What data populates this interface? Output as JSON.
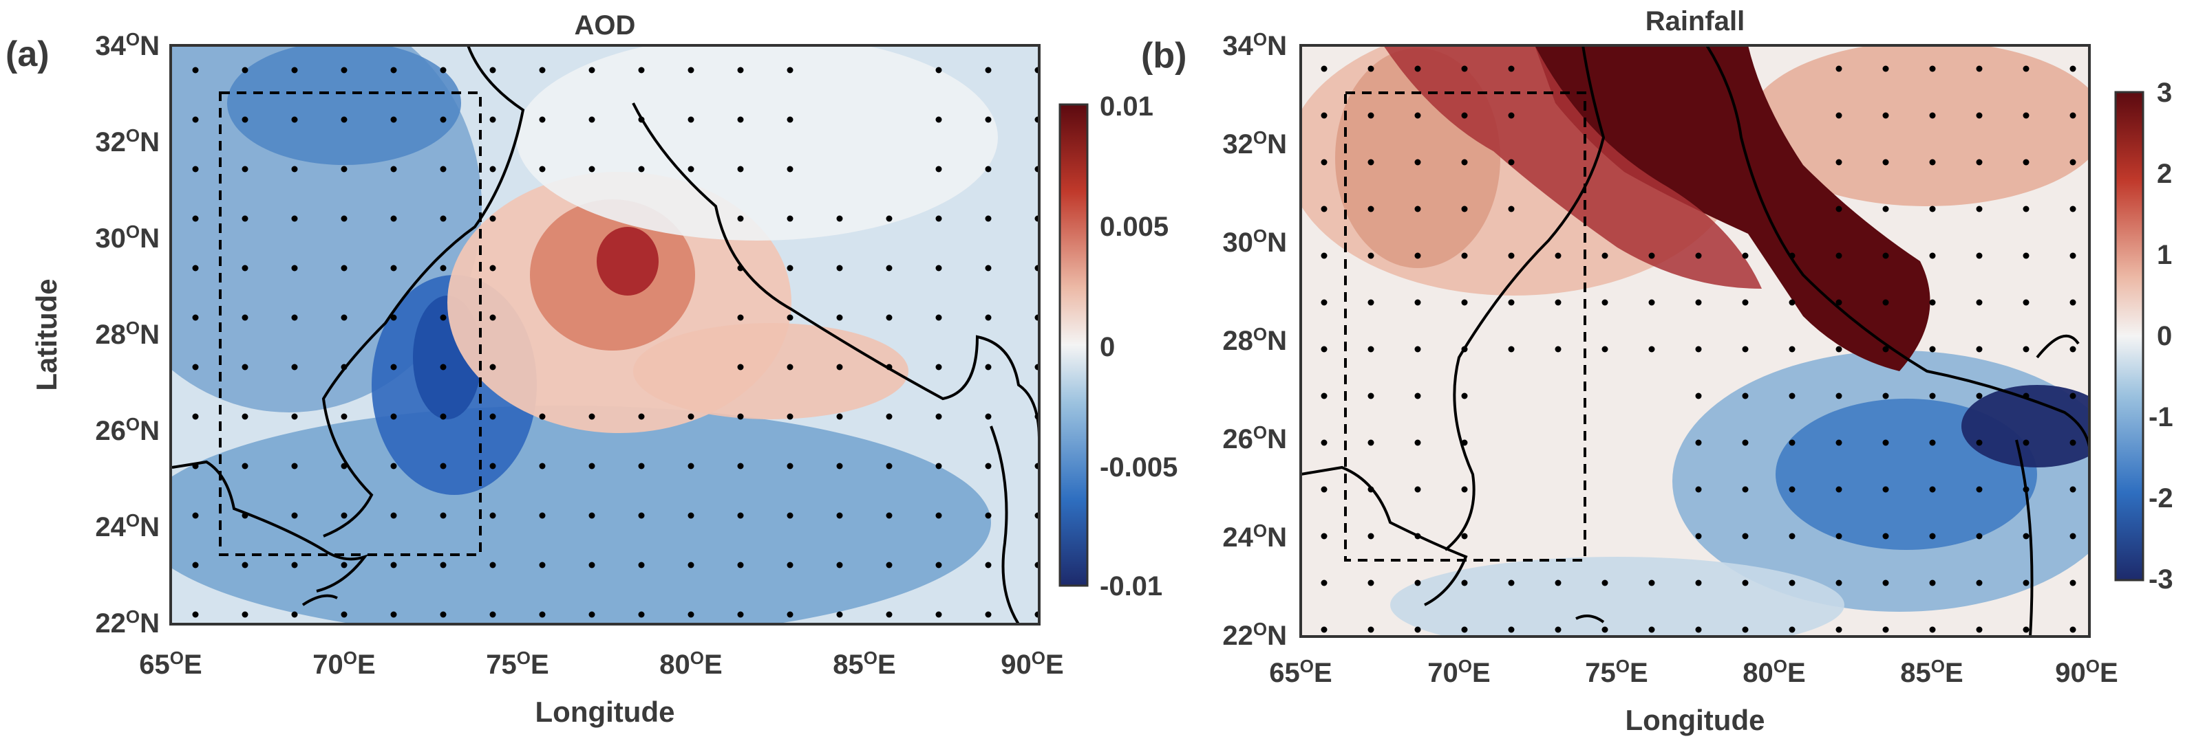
{
  "figure": {
    "panels": [
      {
        "id": "a",
        "panel_label": "(a)",
        "title": "AOD",
        "xlabel": "Longitude",
        "ylabel": "Latitude",
        "lon_ticks": [
          {
            "base": "65",
            "deg": "O",
            "hemi": "E"
          },
          {
            "base": "70",
            "deg": "O",
            "hemi": "E"
          },
          {
            "base": "75",
            "deg": "O",
            "hemi": "E"
          },
          {
            "base": "80",
            "deg": "O",
            "hemi": "E"
          },
          {
            "base": "85",
            "deg": "O",
            "hemi": "E"
          },
          {
            "base": "90",
            "deg": "O",
            "hemi": "E"
          }
        ],
        "lat_ticks": [
          {
            "base": "34",
            "deg": "O",
            "hemi": "N"
          },
          {
            "base": "32",
            "deg": "O",
            "hemi": "N"
          },
          {
            "base": "30",
            "deg": "O",
            "hemi": "N"
          },
          {
            "base": "28",
            "deg": "O",
            "hemi": "N"
          },
          {
            "base": "26",
            "deg": "O",
            "hemi": "N"
          },
          {
            "base": "24",
            "deg": "O",
            "hemi": "N"
          },
          {
            "base": "22",
            "deg": "O",
            "hemi": "N"
          }
        ],
        "colorbar_ticks": [
          "0.01",
          "0.005",
          "0",
          "-0.005",
          "-0.01"
        ],
        "colorbar_range": [
          -0.01,
          0.01
        ]
      },
      {
        "id": "b",
        "panel_label": "(b)",
        "title": "Rainfall",
        "xlabel": "Longitude",
        "lon_ticks": [
          {
            "base": "65",
            "deg": "O",
            "hemi": "E"
          },
          {
            "base": "70",
            "deg": "O",
            "hemi": "E"
          },
          {
            "base": "75",
            "deg": "O",
            "hemi": "E"
          },
          {
            "base": "80",
            "deg": "O",
            "hemi": "E"
          },
          {
            "base": "85",
            "deg": "O",
            "hemi": "E"
          },
          {
            "base": "90",
            "deg": "O",
            "hemi": "E"
          }
        ],
        "lat_ticks": [
          {
            "base": "34",
            "deg": "O",
            "hemi": "N"
          },
          {
            "base": "32",
            "deg": "O",
            "hemi": "N"
          },
          {
            "base": "30",
            "deg": "O",
            "hemi": "N"
          },
          {
            "base": "28",
            "deg": "O",
            "hemi": "N"
          },
          {
            "base": "26",
            "deg": "O",
            "hemi": "N"
          },
          {
            "base": "24",
            "deg": "O",
            "hemi": "N"
          },
          {
            "base": "22",
            "deg": "O",
            "hemi": "N"
          }
        ],
        "colorbar_ticks": [
          "3",
          "2",
          "1",
          "0",
          "-1",
          "-2",
          "-3"
        ],
        "colorbar_range": [
          -3,
          3
        ]
      }
    ],
    "colors": {
      "strong_negative": "#1d2a6b",
      "negative": "#2f6fc0",
      "neutral": "#f4f4f4",
      "positive": "#c0392b",
      "strong_positive": "#5c0a10",
      "frame": "#333333"
    }
  }
}
